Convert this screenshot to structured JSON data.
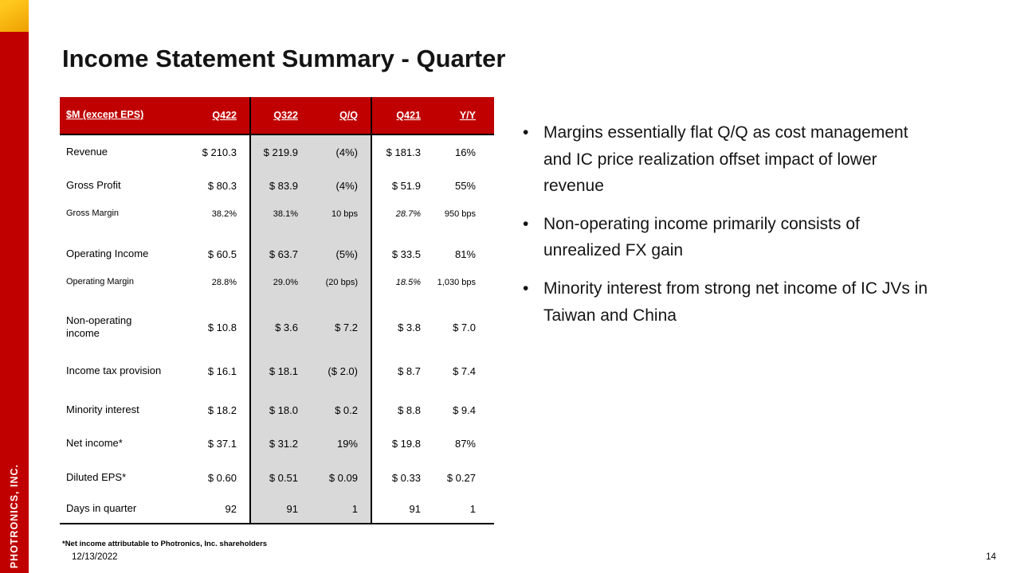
{
  "colors": {
    "red": "#C00000",
    "yellow": "#FFC91F",
    "gray": "#D9D9D9"
  },
  "sidebar": {
    "brand": "PHOTRONICS, INC."
  },
  "header": {
    "title": "Income Statement Summary - Quarter"
  },
  "table": {
    "columns": [
      "$M (except EPS)",
      "Q422",
      "Q322",
      "Q/Q",
      "Q421",
      "Y/Y"
    ],
    "rows": [
      {
        "style": "normal",
        "label": "Revenue",
        "values": [
          "$ 210.3",
          "$ 219.9",
          "(4%)",
          "$ 181.3",
          "16%"
        ]
      },
      {
        "style": "normal",
        "label": "Gross Profit",
        "values": [
          "$ 80.3",
          "$ 83.9",
          "(4%)",
          "$ 51.9",
          "55%"
        ]
      },
      {
        "style": "small",
        "label": "Gross Margin",
        "values": [
          "38.2%",
          "38.1%",
          "10 bps",
          "28.7%",
          "950 bps"
        ],
        "italic_q421": true
      },
      {
        "style": "spacer",
        "label": "",
        "values": [
          "",
          "",
          "",
          "",
          ""
        ]
      },
      {
        "style": "normal",
        "label": "Operating Income",
        "values": [
          "$ 60.5",
          "$ 63.7",
          "(5%)",
          "$ 33.5",
          "81%"
        ]
      },
      {
        "style": "small",
        "label": "Operating Margin",
        "values": [
          "28.8%",
          "29.0%",
          "(20 bps)",
          "18.5%",
          "1,030 bps"
        ],
        "italic_q421": true
      },
      {
        "style": "spacer",
        "label": "",
        "values": [
          "",
          "",
          "",
          "",
          ""
        ]
      },
      {
        "style": "twoline",
        "label": "Non-operating\nincome",
        "values": [
          "$ 10.8",
          "$ 3.6",
          "$ 7.2",
          "$ 3.8",
          "$ 7.0"
        ]
      },
      {
        "style": "tall",
        "label": "Income tax provision",
        "values": [
          "$ 16.1",
          "$ 18.1",
          "($ 2.0)",
          "$ 8.7",
          "$ 7.4"
        ]
      },
      {
        "style": "normal",
        "label": "Minority interest",
        "values": [
          "$ 18.2",
          "$ 18.0",
          "$ 0.2",
          "$ 8.8",
          "$ 9.4"
        ]
      },
      {
        "style": "normal",
        "label": "Net income*",
        "values": [
          "$ 37.1",
          "$ 31.2",
          "19%",
          "$ 19.8",
          "87%"
        ]
      },
      {
        "style": "eps",
        "label": "Diluted EPS*",
        "values": [
          "$ 0.60",
          "$ 0.51",
          "$ 0.09",
          "$ 0.33",
          "$ 0.27"
        ]
      },
      {
        "style": "last",
        "label": "Days in quarter",
        "values": [
          "92",
          "91",
          "1",
          "91",
          "1"
        ]
      }
    ]
  },
  "bullets": [
    "Margins essentially flat Q/Q as cost management and IC price realization offset impact of lower revenue",
    "Non-operating income primarily consists of unrealized FX gain",
    "Minority interest from strong net income of IC JVs in Taiwan and China"
  ],
  "footer": {
    "footnote": "*Net income attributable to Photronics, Inc. shareholders",
    "date": "12/13/2022",
    "page": "14"
  }
}
